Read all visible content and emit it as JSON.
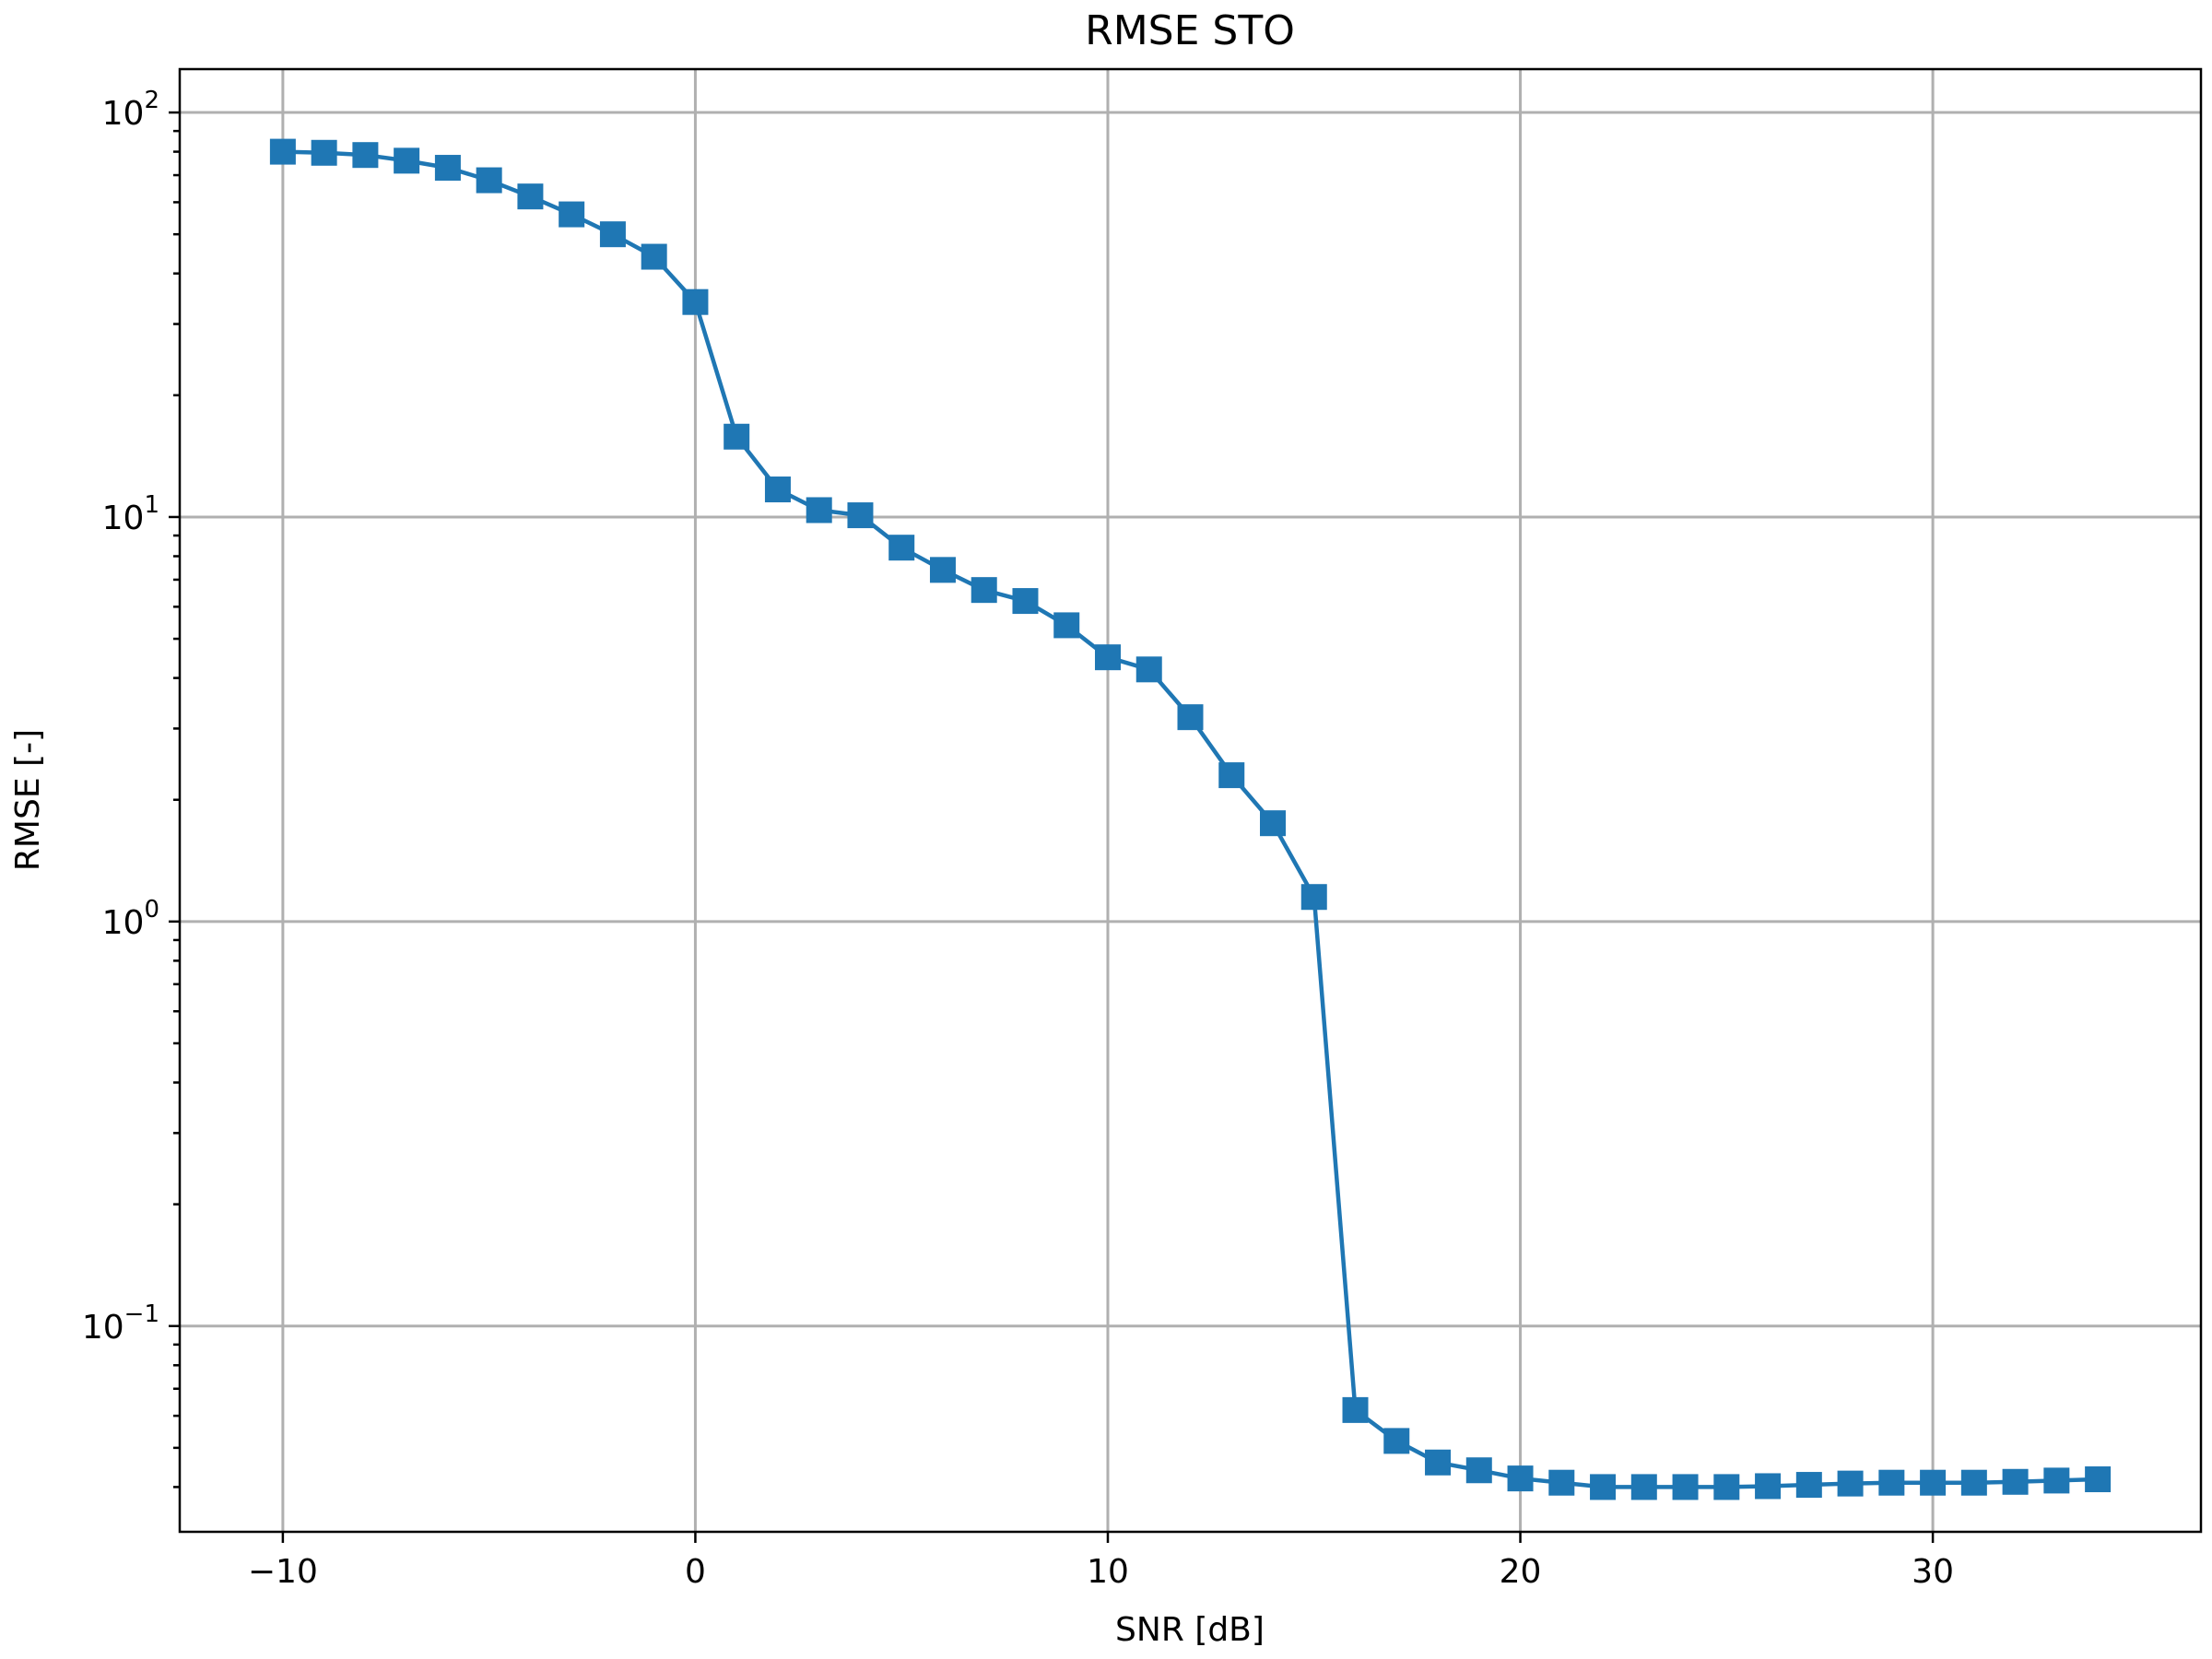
{
  "chart_data": {
    "type": "line",
    "title": "RMSE STO",
    "xlabel": "SNR [dB]",
    "ylabel": "RMSE [-]",
    "y_scale": "log",
    "xlim": [
      -12.5,
      36.5
    ],
    "ylim": [
      0.031,
      128
    ],
    "x_ticks": [
      -10,
      0,
      10,
      20,
      30
    ],
    "x_tick_labels": [
      "−10",
      "0",
      "10",
      "20",
      "30"
    ],
    "y_ticks": [
      0.1,
      1,
      10,
      100
    ],
    "y_tick_labels": [
      {
        "base": "10",
        "exp": "−1"
      },
      {
        "base": "10",
        "exp": "0"
      },
      {
        "base": "10",
        "exp": "1"
      },
      {
        "base": "10",
        "exp": "2"
      }
    ],
    "grid": true,
    "colors": {
      "series": "#1f77b4",
      "grid": "#b0b0b0",
      "axis": "#000000"
    },
    "marker": "square",
    "series": [
      {
        "x": [
          -10,
          -9,
          -8,
          -7,
          -6,
          -5,
          -4,
          -3,
          -2,
          -1,
          0,
          1,
          2,
          3,
          4,
          5,
          6,
          7,
          8,
          9,
          10,
          11,
          12,
          13,
          14,
          15,
          16,
          17,
          18,
          19,
          20,
          21,
          22,
          23,
          24,
          25,
          26,
          27,
          28,
          29,
          30,
          31,
          32,
          33,
          34
        ],
        "y": [
          80,
          79.5,
          78.5,
          76,
          73,
          68,
          62,
          56,
          50,
          44,
          34,
          15.8,
          11.7,
          10.4,
          10.1,
          8.4,
          7.4,
          6.6,
          6.2,
          5.4,
          4.5,
          4.2,
          3.2,
          2.3,
          1.75,
          1.15,
          0.062,
          0.052,
          0.046,
          0.044,
          0.042,
          0.041,
          0.04,
          0.04,
          0.04,
          0.04,
          0.0402,
          0.0405,
          0.0408,
          0.041,
          0.041,
          0.041,
          0.0412,
          0.0415,
          0.0418
        ]
      }
    ]
  }
}
